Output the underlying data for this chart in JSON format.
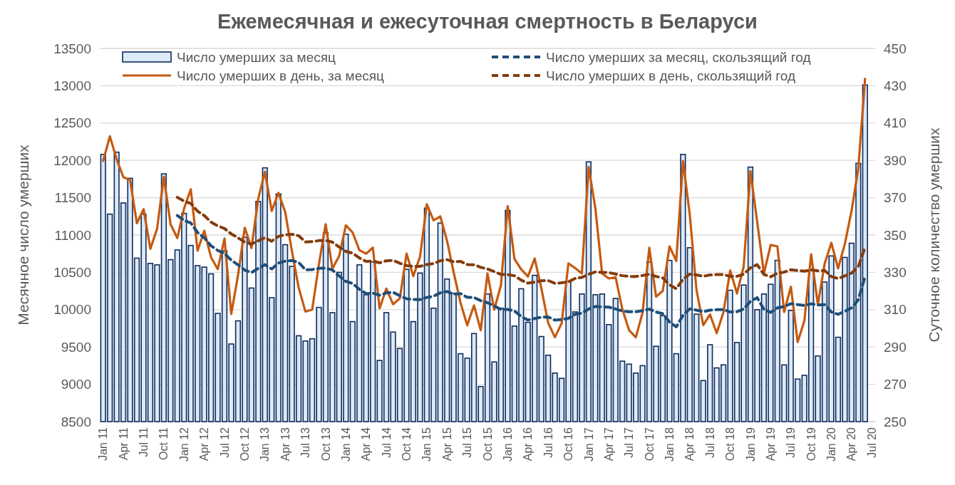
{
  "chart_data": {
    "type": "bar",
    "title": "Ежемесячная и ежесуточная смертность в Беларуси",
    "ylabel": "Месячное число умерших",
    "y2label": "Суточное количество умерших",
    "categories": [
      "Jan 11",
      null,
      null,
      "Apr 11",
      null,
      null,
      "Jul 11",
      null,
      null,
      "Oct 11",
      null,
      null,
      "Jan 12",
      null,
      null,
      "Apr 12",
      null,
      null,
      "Jul 12",
      null,
      null,
      "Oct 12",
      null,
      null,
      "Jan 13",
      null,
      null,
      "Apr 13",
      null,
      null,
      "Jul 13",
      null,
      null,
      "Oct 13",
      null,
      null,
      "Jan 14",
      null,
      null,
      "Apr 14",
      null,
      null,
      "Jul 14",
      null,
      null,
      "Oct 14",
      null,
      null,
      "Jan 15",
      null,
      null,
      "Apr 15",
      null,
      null,
      "Jul 15",
      null,
      null,
      "Oct 15",
      null,
      null,
      "Jan 16",
      null,
      null,
      "Apr 16",
      null,
      null,
      "Jul 16",
      null,
      null,
      "Oct 16",
      null,
      null,
      "Jan 17",
      null,
      null,
      "Apr 17",
      null,
      null,
      "Jul 17",
      null,
      null,
      "Oct 17",
      null,
      null,
      "Jan 18",
      null,
      null,
      "Apr 18",
      null,
      null,
      "Jul 18",
      null,
      null,
      "Oct 18",
      null,
      null,
      "Jan 19",
      null,
      null,
      "Apr 19",
      null,
      null,
      "Jul 19",
      null,
      null,
      "Oct 19",
      null,
      null,
      "Jan 20",
      null,
      null,
      "Apr 20",
      null,
      null,
      "Jul 20"
    ],
    "series": [
      {
        "name": "Число умерших за месяц",
        "color": "#dce9f7",
        "values": [
          12080,
          11280,
          12110,
          11430,
          11760,
          10690,
          11280,
          10620,
          10600,
          11820,
          10670,
          10800,
          11290,
          10860,
          10590,
          10570,
          10480,
          9950,
          10790,
          9540,
          9850,
          10970,
          10290,
          11450,
          11900,
          10160,
          11550,
          10870,
          10580,
          9650,
          9580,
          9610,
          10030,
          11030,
          9960,
          10500,
          11010,
          9840,
          10600,
          10200,
          10640,
          9320,
          9960,
          9700,
          9480,
          10540,
          9840,
          10490,
          11360,
          10020,
          11160,
          10410,
          10220,
          9410,
          9350,
          9680,
          8970,
          10210,
          9300,
          10020,
          11330,
          9780,
          10280,
          9830,
          10460,
          9640,
          9390,
          9150,
          9080,
          10380,
          9970,
          10210,
          11980,
          10200,
          10210,
          9800,
          10150,
          9310,
          9270,
          9150,
          9250,
          10640,
          9510,
          9920,
          10660,
          9410,
          12080,
          10830,
          9940,
          9050,
          9530,
          9220,
          9260,
          10260,
          9560,
          10330,
          11910,
          10000,
          10210,
          10340,
          10660,
          9260,
          9990,
          9070,
          9120,
          10530,
          9380,
          10370,
          10720,
          9630,
          10700,
          10890,
          11960,
          13010,
          null
        ]
      },
      {
        "name": "Число умерших в день, за месяц",
        "type": "line",
        "axis": "y2",
        "color": "#c55a11",
        "line_style": "solid",
        "values": [
          389.7,
          402.9,
          390.6,
          381,
          379.4,
          356.3,
          363.9,
          342.6,
          353.3,
          381.3,
          355.7,
          348.4,
          364.2,
          374.5,
          341.6,
          352.3,
          338.1,
          331.7,
          348.1,
          307.7,
          328.3,
          353.9,
          343,
          369.4,
          383.9,
          362.9,
          372.6,
          362.3,
          341.3,
          321.7,
          309,
          310,
          334.3,
          355.8,
          332,
          338.7,
          355.2,
          351.4,
          341.9,
          340,
          343.2,
          310.7,
          321.3,
          312.9,
          316,
          340,
          328,
          338.4,
          366.5,
          357.9,
          360,
          347,
          329.7,
          313.7,
          301.6,
          312.3,
          299,
          329.4,
          310,
          323.2,
          365.5,
          337.2,
          331.6,
          327.7,
          337.4,
          321.3,
          302.9,
          295.2,
          302.7,
          334.8,
          332.3,
          329.4,
          386.5,
          364.3,
          329.4,
          326.7,
          327.4,
          310.3,
          299,
          295.2,
          308.3,
          343.2,
          317,
          320,
          343.9,
          336.1,
          389.7,
          361,
          320.6,
          301.7,
          307.4,
          297.4,
          308.7,
          331,
          318.7,
          333.2,
          384.2,
          357.1,
          329.4,
          344.7,
          343.9,
          308.7,
          322.3,
          292.6,
          304,
          339.7,
          312.7,
          334.5,
          345.8,
          332.1,
          345.2,
          363,
          385.8,
          433.7,
          null
        ]
      },
      {
        "name": "Число умерших за месяц, скользящий год",
        "type": "line",
        "color": "#1f4e79",
        "line_style": "dashed",
        "values": [
          null,
          null,
          null,
          null,
          null,
          null,
          null,
          null,
          null,
          null,
          null,
          11262,
          11196,
          11161,
          11034,
          10963,
          10856,
          10794,
          10753,
          10663,
          10601,
          10530,
          10498,
          10553,
          10603,
          10545,
          10625,
          10650,
          10658,
          10633,
          10533,
          10538,
          10553,
          10558,
          10531,
          10452,
          10378,
          10351,
          10272,
          10216,
          10221,
          10193,
          10225,
          10233,
          10187,
          10146,
          10136,
          10135,
          10164,
          10179,
          10226,
          10243,
          10208,
          10216,
          10165,
          10163,
          10121,
          10093,
          10048,
          10005,
          10003,
          9983,
          9909,
          9861,
          9881,
          9900,
          9903,
          9859,
          9868,
          9883,
          9938,
          9954,
          10008,
          10043,
          10038,
          10035,
          10009,
          9982,
          9972,
          9972,
          9986,
          10008,
          9969,
          9945,
          9835,
          9769,
          9925,
          10011,
          9994,
          9973,
          9994,
          10000,
          10001,
          9969,
          9973,
          10008,
          10112,
          10161,
          10005,
          9964,
          10024,
          10042,
          10080,
          10068,
          10056,
          10078,
          10063,
          10068,
          9968,
          9938,
          9978,
          10024,
          10133,
          10445,
          null
        ]
      },
      {
        "name": "Число умерших в день, скользящий год",
        "type": "line",
        "axis": "y2",
        "color": "#843c0c",
        "line_style": "dashed",
        "values": [
          null,
          null,
          null,
          null,
          null,
          null,
          null,
          null,
          null,
          null,
          null,
          370.2,
          368.1,
          366.9,
          362.8,
          360.4,
          356.9,
          354.9,
          353.5,
          350.6,
          348.5,
          346.2,
          345.2,
          346.9,
          348.6,
          346.7,
          349.3,
          350.1,
          350.4,
          349.6,
          346.3,
          346.5,
          347,
          347.1,
          346.2,
          343.6,
          341.2,
          340.3,
          337.7,
          335.9,
          336,
          335.1,
          336.2,
          336.4,
          334.9,
          333.6,
          333.2,
          333.2,
          334.2,
          334.7,
          336.2,
          336.8,
          335.6,
          335.9,
          334.2,
          334.1,
          332.7,
          331.8,
          330.4,
          328.9,
          328.8,
          328.2,
          325.8,
          324.2,
          324.8,
          325.5,
          325.6,
          324.1,
          324.4,
          324.9,
          326.7,
          327.3,
          329,
          330.2,
          330,
          329.9,
          329.1,
          328.2,
          327.8,
          327.8,
          328.3,
          329,
          327.8,
          327,
          323.3,
          321.2,
          326.3,
          329.1,
          328.6,
          327.9,
          328.6,
          328.8,
          328.8,
          327.8,
          327.9,
          329,
          332.4,
          334.1,
          328.9,
          327.6,
          329.6,
          330.1,
          331.4,
          331,
          330.6,
          331.3,
          330.8,
          331,
          327.7,
          326.7,
          328.1,
          329.6,
          333.1,
          343.4,
          null
        ]
      }
    ],
    "ylim": [
      8500,
      13500
    ],
    "yticks": [
      8500,
      9000,
      9500,
      10000,
      10500,
      11000,
      11500,
      12000,
      12500,
      13000,
      13500
    ],
    "y2lim": [
      250,
      450
    ],
    "y2ticks": [
      250,
      270,
      290,
      310,
      330,
      350,
      370,
      390,
      410,
      430,
      450
    ],
    "grid": "y",
    "legend": "top",
    "marker": "none"
  }
}
